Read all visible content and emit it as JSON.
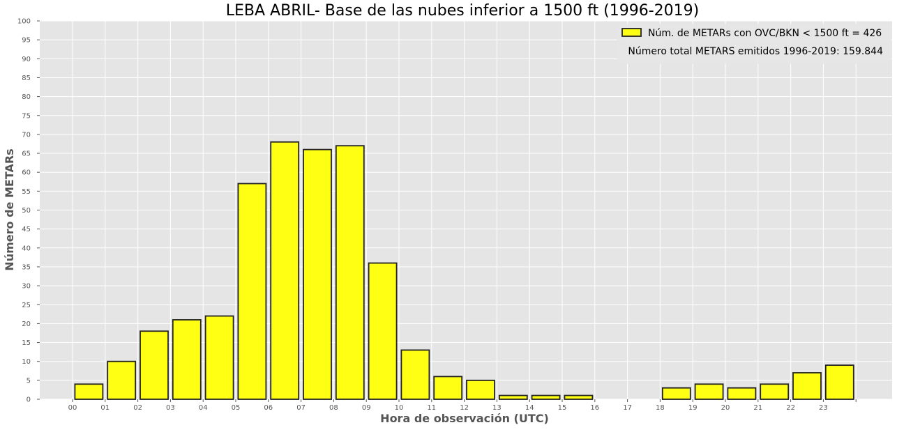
{
  "chart_data": {
    "type": "bar",
    "title": "LEBA ABRIL- Base de las nubes inferior a 1500 ft (1996-2019)",
    "xlabel": "Hora de observación (UTC)",
    "ylabel": "Número de METARs",
    "categories": [
      "00",
      "01",
      "02",
      "03",
      "04",
      "05",
      "06",
      "07",
      "08",
      "09",
      "10",
      "11",
      "12",
      "13",
      "14",
      "15",
      "16",
      "17",
      "18",
      "19",
      "20",
      "21",
      "22",
      "23"
    ],
    "values": [
      4,
      10,
      18,
      21,
      22,
      57,
      68,
      66,
      67,
      36,
      13,
      6,
      5,
      1,
      1,
      1,
      0,
      0,
      3,
      4,
      3,
      4,
      7,
      9
    ],
    "ylim": [
      0,
      100
    ],
    "yticks": [
      0,
      5,
      10,
      15,
      20,
      25,
      30,
      35,
      40,
      45,
      50,
      55,
      60,
      65,
      70,
      75,
      80,
      85,
      90,
      95,
      100
    ],
    "grid": true,
    "legend": {
      "position": "top-right",
      "entry": "Núm. de METARs con OVC/BKN < 1500 ft = 426",
      "note": "Número total METARS emitidos 1996-2019: 159.844"
    },
    "colors": {
      "bar_fill": "#ffff14",
      "bar_edge": "#222222",
      "background": "#e5e5e5",
      "grid": "#ffffff"
    }
  }
}
